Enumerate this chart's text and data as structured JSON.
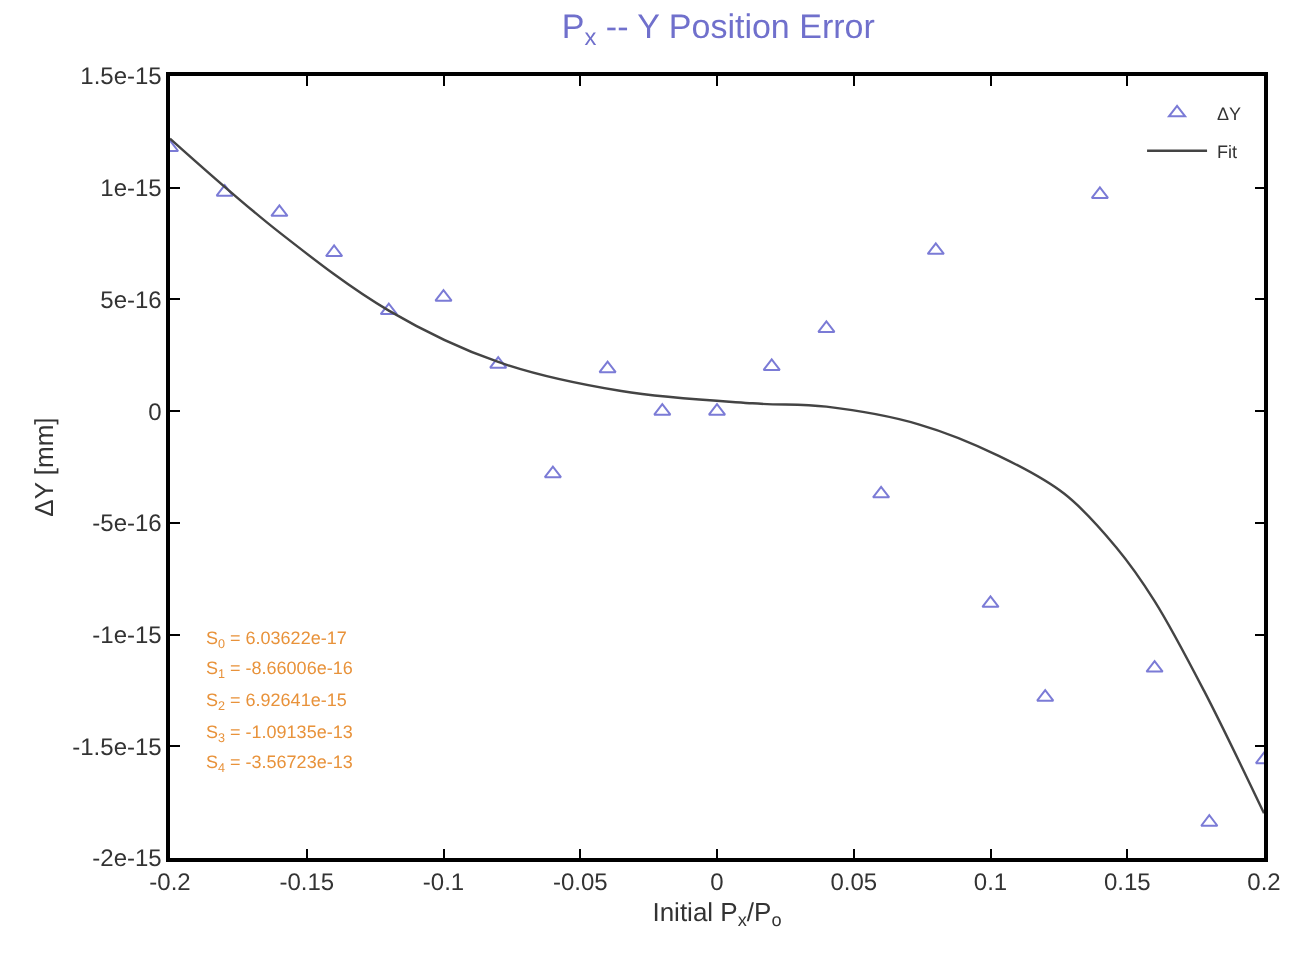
{
  "chart_data": {
    "type": "scatter",
    "title": "P$_{x}$ -- Y Position Error",
    "xlabel": "Initial P$_{x}$/P$_{o}$",
    "ylabel": "ΔY [mm]",
    "xlim": [
      -0.2,
      0.2
    ],
    "xticks": [
      -0.2,
      -0.15,
      -0.1,
      -0.05,
      0,
      0.05,
      0.1,
      0.15,
      0.2
    ],
    "ylim": [
      -2e-15,
      1.5e-15
    ],
    "yticks": [
      {
        "value": -2e-15,
        "label": "-2e-15"
      },
      {
        "value": -1.5e-15,
        "label": "-1.5e-15"
      },
      {
        "value": -1e-15,
        "label": "-1e-15"
      },
      {
        "value": -5e-16,
        "label": "-5e-16"
      },
      {
        "value": 0,
        "label": "0"
      },
      {
        "value": 5e-16,
        "label": "5e-16"
      },
      {
        "value": 1e-15,
        "label": "1e-15"
      },
      {
        "value": 1.5e-15,
        "label": "1.5e-15"
      }
    ],
    "legend": "top right",
    "series": [
      {
        "name": "ΔY",
        "marker": "triangle",
        "color": "#7b7bd6",
        "x": [
          -0.2,
          -0.18,
          -0.16,
          -0.14,
          -0.12,
          -0.1,
          -0.08,
          -0.06,
          -0.04,
          -0.02,
          0,
          0.02,
          0.04,
          0.06,
          0.08,
          0.1,
          0.12,
          0.14,
          0.16,
          0.18,
          0.2
        ],
        "values": [
          1.18e-15,
          9.8e-16,
          8.9e-16,
          7.1e-16,
          4.5e-16,
          5.1e-16,
          2.1e-16,
          -2.8e-16,
          1.9e-16,
          0,
          0,
          2e-16,
          3.7e-16,
          -3.7e-16,
          7.2e-16,
          -8.6e-16,
          -1.28e-15,
          9.7e-16,
          -1.15e-15,
          -1.84e-15,
          -1.56e-15
        ]
      },
      {
        "name": "Fit",
        "type": "line",
        "marker": "none",
        "line_style": "solid",
        "color": "#444444",
        "x": [
          -0.2,
          -0.16,
          -0.12,
          -0.08,
          -0.035,
          0.013,
          0.04,
          0.074,
          0.103,
          0.127,
          0.146,
          0.16,
          0.178,
          0.2
        ],
        "values": [
          1.22e-15,
          8e-16,
          4.5e-16,
          2.2e-16,
          9e-17,
          3.5e-17,
          2e-17,
          -6e-17,
          -2e-16,
          -3.7e-16,
          -6.1e-16,
          -8.5e-16,
          -1.25e-15,
          -1.8e-15
        ]
      }
    ],
    "annotations": [
      "S$_{0}$ = 6.03622e-17",
      "S$_{1}$ = -8.66006e-16",
      "S$_{2}$ = 6.92641e-15",
      "S$_{3}$ = -1.09135e-13",
      "S$_{4}$ = -3.56723e-13"
    ]
  }
}
